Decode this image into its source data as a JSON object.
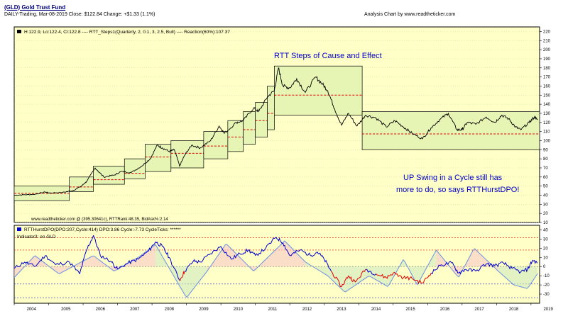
{
  "header": {
    "title": "(GLD) Gold Trust Fund",
    "quote": "DAILY-Trading, Mar-08-2019  Close: $122.84  Change: +$1.33  (1.1%)",
    "credit": "Analysis Chart by www.readtheticker.com"
  },
  "colors": {
    "price": "#000000",
    "step_box_fill": "#e6f5b4",
    "step_box_edge": "#000000",
    "reaction_line": "#e00000",
    "dpo_line": "#0000cc",
    "dpo_negative": "#e00000",
    "cycle_line": "#6a8fe0",
    "annotation": "#0000cc",
    "background": "#ffffc8"
  },
  "chart_data": [
    {
      "type": "line",
      "legend_text": "H:122.9, Lo:122.4, Cl:122.8  ---- RTT_Steps1(Quarterly, 2, 0.1, 3, 2.5, Bull) ---- Reaction(60%):107.37",
      "footer_text": "www.readtheticker.com @ (395.30641c), RTTRank:48.35, BidAsk%:2.14",
      "annotations": [
        "RTT Steps of Cause and Effect",
        "UP Swing in a Cycle still has",
        "more to do, so says RTTHurstDPO!"
      ],
      "y_ticks": [
        10,
        20,
        30,
        40,
        50,
        60,
        70,
        80,
        90,
        100,
        110,
        120,
        130,
        140,
        150,
        160,
        170,
        180,
        190,
        200,
        210,
        220
      ],
      "ylim": [
        10,
        225
      ],
      "x_ticks": [
        "2004",
        "2005",
        "2006",
        "2007",
        "2008",
        "2009",
        "2010",
        "2011",
        "2012",
        "2013",
        "2014",
        "2015",
        "2016",
        "2017",
        "2018",
        "2019"
      ],
      "xlim": [
        2004.0,
        2019.25
      ],
      "series": [
        {
          "values": [
            [
              2004.0,
              40
            ],
            [
              2004.3,
              40.5
            ],
            [
              2004.6,
              41
            ],
            [
              2004.9,
              43.5
            ],
            [
              2005.0,
              42.5
            ],
            [
              2005.4,
              43
            ],
            [
              2005.7,
              45
            ],
            [
              2005.95,
              50
            ],
            [
              2006.1,
              55
            ],
            [
              2006.35,
              70
            ],
            [
              2006.6,
              60
            ],
            [
              2006.9,
              62
            ],
            [
              2007.1,
              66
            ],
            [
              2007.4,
              65
            ],
            [
              2007.7,
              72
            ],
            [
              2007.95,
              80
            ],
            [
              2008.15,
              95
            ],
            [
              2008.3,
              92
            ],
            [
              2008.5,
              88
            ],
            [
              2008.65,
              90
            ],
            [
              2008.8,
              72
            ],
            [
              2008.95,
              84
            ],
            [
              2009.15,
              95
            ],
            [
              2009.4,
              92
            ],
            [
              2009.7,
              100
            ],
            [
              2009.95,
              116
            ],
            [
              2010.1,
              108
            ],
            [
              2010.45,
              120
            ],
            [
              2010.65,
              122
            ],
            [
              2010.95,
              136
            ],
            [
              2011.1,
              132
            ],
            [
              2011.35,
              148
            ],
            [
              2011.55,
              155
            ],
            [
              2011.67,
              180
            ],
            [
              2011.8,
              160
            ],
            [
              2012.0,
              158
            ],
            [
              2012.2,
              168
            ],
            [
              2012.45,
              153
            ],
            [
              2012.75,
              170
            ],
            [
              2012.95,
              162
            ],
            [
              2013.1,
              155
            ],
            [
              2013.3,
              135
            ],
            [
              2013.5,
              117
            ],
            [
              2013.7,
              130
            ],
            [
              2013.95,
              116
            ],
            [
              2014.2,
              128
            ],
            [
              2014.5,
              125
            ],
            [
              2014.8,
              115
            ],
            [
              2015.05,
              122
            ],
            [
              2015.3,
              115
            ],
            [
              2015.55,
              108
            ],
            [
              2015.85,
              102
            ],
            [
              2016.1,
              114
            ],
            [
              2016.35,
              123
            ],
            [
              2016.6,
              130
            ],
            [
              2016.85,
              112
            ],
            [
              2017.0,
              112
            ],
            [
              2017.15,
              120
            ],
            [
              2017.4,
              118
            ],
            [
              2017.7,
              126
            ],
            [
              2017.95,
              120
            ],
            [
              2018.15,
              128
            ],
            [
              2018.35,
              124
            ],
            [
              2018.55,
              115
            ],
            [
              2018.7,
              112
            ],
            [
              2018.95,
              120
            ],
            [
              2019.1,
              126
            ],
            [
              2019.19,
              122.8
            ]
          ]
        }
      ],
      "step_boxes": [
        {
          "x": [
            2004.0,
            2005.6
          ],
          "y": [
            34,
            50
          ],
          "reaction": 42
        },
        {
          "x": [
            2005.6,
            2006.3
          ],
          "y": [
            44,
            60
          ],
          "reaction": 49
        },
        {
          "x": [
            2006.3,
            2007.2
          ],
          "y": [
            52,
            72
          ],
          "reaction": 57
        },
        {
          "x": [
            2007.2,
            2007.8
          ],
          "y": [
            58,
            80
          ],
          "reaction": 64
        },
        {
          "x": [
            2007.8,
            2008.55
          ],
          "y": [
            66,
            96
          ],
          "reaction": 82
        },
        {
          "x": [
            2008.55,
            2009.5
          ],
          "y": [
            70,
            100
          ],
          "reaction": 86
        },
        {
          "x": [
            2009.5,
            2010.2
          ],
          "y": [
            80,
            110
          ],
          "reaction": 94
        },
        {
          "x": [
            2010.2,
            2010.65
          ],
          "y": [
            88,
            122
          ],
          "reaction": 104
        },
        {
          "x": [
            2010.65,
            2011.0
          ],
          "y": [
            96,
            132
          ],
          "reaction": 112
        },
        {
          "x": [
            2011.0,
            2011.35
          ],
          "y": [
            104,
            142
          ],
          "reaction": 122
        },
        {
          "x": [
            2011.35,
            2011.55
          ],
          "y": [
            112,
            160
          ],
          "reaction": 130
        },
        {
          "x": [
            2011.55,
            2014.1
          ],
          "y": [
            128,
            182
          ],
          "reaction": 150
        },
        {
          "x": [
            2014.1,
            2019.25
          ],
          "y": [
            90,
            132
          ],
          "reaction": 107.37
        }
      ]
    },
    {
      "type": "line",
      "legend_text": "RTTHurstDPO(DPO:207,Cycle:414)  DPO:3.86    Cycle:-7.73  CycleTicks: ******",
      "label": "Indicator3: on GLD",
      "y_ticks": [
        -30,
        -20,
        -10,
        0,
        10,
        20,
        30,
        40
      ],
      "ylim": [
        -40,
        45
      ],
      "reference_lines": [
        31.5,
        18,
        0,
        -19,
        -34
      ],
      "series": [
        {
          "values": [
            [
              2004.0,
              -2
            ],
            [
              2004.3,
              5
            ],
            [
              2004.6,
              0
            ],
            [
              2004.9,
              12
            ],
            [
              2005.2,
              2
            ],
            [
              2005.6,
              5
            ],
            [
              2005.9,
              -8
            ],
            [
              2006.1,
              18
            ],
            [
              2006.3,
              34
            ],
            [
              2006.5,
              12
            ],
            [
              2006.8,
              6
            ],
            [
              2007.0,
              -3
            ],
            [
              2007.3,
              4
            ],
            [
              2007.6,
              8
            ],
            [
              2007.9,
              17
            ],
            [
              2008.1,
              27
            ],
            [
              2008.3,
              22
            ],
            [
              2008.5,
              10
            ],
            [
              2008.8,
              -15
            ],
            [
              2008.95,
              -5
            ],
            [
              2009.2,
              6
            ],
            [
              2009.4,
              5
            ],
            [
              2009.7,
              14
            ],
            [
              2010.0,
              22
            ],
            [
              2010.3,
              8
            ],
            [
              2010.55,
              14
            ],
            [
              2010.8,
              18
            ],
            [
              2011.0,
              12
            ],
            [
              2011.3,
              20
            ],
            [
              2011.6,
              32
            ],
            [
              2011.8,
              26
            ],
            [
              2012.0,
              12
            ],
            [
              2012.3,
              18
            ],
            [
              2012.6,
              12
            ],
            [
              2012.8,
              16
            ],
            [
              2013.0,
              8
            ],
            [
              2013.2,
              -5
            ],
            [
              2013.5,
              -22
            ],
            [
              2013.7,
              -10
            ],
            [
              2013.9,
              -17
            ],
            [
              2014.2,
              -3
            ],
            [
              2014.5,
              -8
            ],
            [
              2014.8,
              -12
            ],
            [
              2015.0,
              -7
            ],
            [
              2015.3,
              -12
            ],
            [
              2015.55,
              -13
            ],
            [
              2015.85,
              -18
            ],
            [
              2016.1,
              -7
            ],
            [
              2016.4,
              2
            ],
            [
              2016.7,
              4
            ],
            [
              2016.9,
              -7
            ],
            [
              2017.1,
              -3
            ],
            [
              2017.4,
              -5
            ],
            [
              2017.7,
              3
            ],
            [
              2017.95,
              1
            ],
            [
              2018.2,
              4
            ],
            [
              2018.45,
              -2
            ],
            [
              2018.7,
              -6
            ],
            [
              2018.9,
              -3
            ],
            [
              2019.05,
              7
            ],
            [
              2019.19,
              3.86
            ]
          ]
        },
        {
          "values": [
            [
              2004.0,
              -12
            ],
            [
              2004.6,
              12
            ],
            [
              2005.3,
              -8
            ],
            [
              2006.3,
              12
            ],
            [
              2006.9,
              -5
            ],
            [
              2007.6,
              10
            ],
            [
              2008.1,
              24
            ],
            [
              2009.0,
              -34
            ],
            [
              2009.6,
              -5
            ],
            [
              2010.15,
              25
            ],
            [
              2010.95,
              -5
            ],
            [
              2011.85,
              28
            ],
            [
              2012.45,
              5
            ],
            [
              2013.1,
              -10
            ],
            [
              2013.6,
              -28
            ],
            [
              2014.3,
              -10
            ],
            [
              2014.85,
              -22
            ],
            [
              2015.3,
              8
            ],
            [
              2015.7,
              -20
            ],
            [
              2016.25,
              18
            ],
            [
              2016.9,
              -12
            ],
            [
              2017.35,
              20
            ],
            [
              2018.05,
              -5
            ],
            [
              2018.5,
              -20
            ],
            [
              2018.9,
              -24
            ],
            [
              2019.19,
              -7.73
            ]
          ]
        }
      ]
    }
  ]
}
